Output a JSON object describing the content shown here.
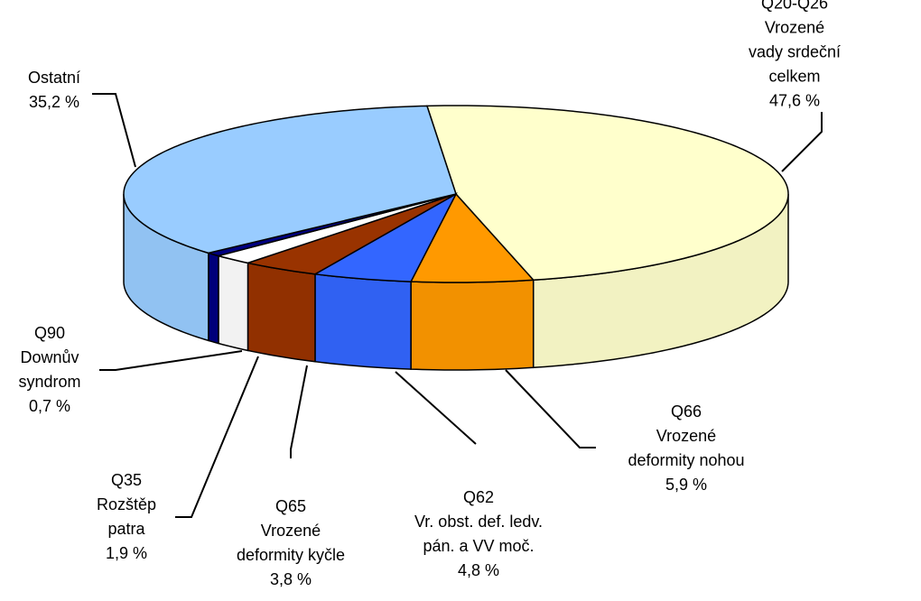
{
  "chart_data": {
    "type": "pie3d",
    "categories": [
      "Q20-Q26 Vrozené\nvady srdeční celkem",
      "Q66\nVrozené\ndeformity nohou",
      "Q62\nVr. obst. def. ledv.\npán. a VV moč.",
      "Q65\nVrozené\ndeformity kyčle",
      "Q35\nRozštěp\npatra",
      "Q90\nDownův\nsyndrom",
      "Ostatní"
    ],
    "values": [
      47.6,
      5.9,
      4.8,
      3.8,
      1.9,
      0.7,
      35.2
    ],
    "value_labels": [
      "47,6 %",
      "5,9 %",
      "4,8 %",
      "3,8 %",
      "1,9 %",
      "0,7 %",
      "35,2 %"
    ],
    "colors": [
      "#ffffcc",
      "#ff9900",
      "#3366ff",
      "#993300",
      "#ffffff",
      "#000080",
      "#99ccff"
    ]
  }
}
